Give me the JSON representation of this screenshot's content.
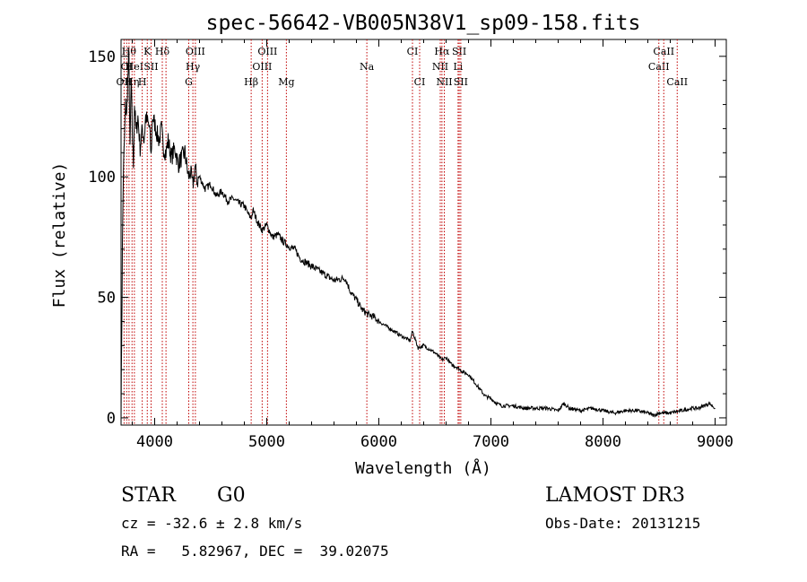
{
  "chart_data": {
    "type": "line",
    "title": "spec-56642-VB005N38V1_sp09-158.fits",
    "xlabel": "Wavelength (Å)",
    "ylabel": "Flux (relative)",
    "xlim": [
      3700,
      9100
    ],
    "ylim": [
      -3,
      157
    ],
    "x_ticks": [
      4000,
      5000,
      6000,
      7000,
      8000,
      9000
    ],
    "y_ticks": [
      0,
      50,
      100,
      150
    ],
    "grid": false,
    "line_color": "#000000",
    "marker_color": "#c00000",
    "series": [
      {
        "name": "flux",
        "x": [
          3700,
          3705,
          3712,
          3720,
          3730,
          3740,
          3750,
          3760,
          3770,
          3780,
          3790,
          3800,
          3810,
          3820,
          3835,
          3850,
          3870,
          3890,
          3905,
          3920,
          3940,
          3955,
          3968,
          3980,
          4000,
          4020,
          4040,
          4060,
          4080,
          4101,
          4120,
          4150,
          4180,
          4210,
          4240,
          4270,
          4300,
          4320,
          4340,
          4360,
          4380,
          4400,
          4450,
          4500,
          4550,
          4600,
          4650,
          4700,
          4750,
          4800,
          4840,
          4861,
          4880,
          4920,
          4960,
          5000,
          5050,
          5100,
          5150,
          5200,
          5250,
          5300,
          5400,
          5500,
          5600,
          5700,
          5750,
          5800,
          5850,
          5900,
          5950,
          6000,
          6100,
          6200,
          6280,
          6300,
          6350,
          6400,
          6500,
          6563,
          6600,
          6650,
          6700,
          6750,
          6800,
          6850,
          6900,
          6950,
          7000,
          7050,
          7100,
          7200,
          7300,
          7400,
          7500,
          7600,
          7650,
          7700,
          7800,
          7900,
          8000,
          8100,
          8200,
          8300,
          8400,
          8450,
          8500,
          8600,
          8700,
          8800,
          8850,
          8900,
          8950,
          9000
        ],
        "values": [
          0,
          30,
          70,
          100,
          115,
          130,
          125,
          140,
          150,
          110,
          140,
          120,
          105,
          130,
          118,
          125,
          112,
          120,
          115,
          125,
          122,
          120,
          108,
          125,
          122,
          118,
          115,
          120,
          112,
          110,
          115,
          108,
          112,
          105,
          108,
          110,
          100,
          102,
          96,
          104,
          98,
          100,
          95,
          97,
          92,
          94,
          90,
          91,
          89,
          88,
          84,
          83,
          86,
          81,
          78,
          80,
          75,
          76,
          73,
          71,
          70,
          66,
          63,
          60,
          57,
          58,
          52,
          49,
          45,
          43,
          42,
          40,
          37,
          34,
          32,
          36,
          29,
          30,
          27,
          24,
          25,
          22,
          21,
          19,
          18,
          15,
          12,
          9,
          8,
          6,
          5,
          5,
          4,
          4,
          4,
          3,
          6,
          4,
          3,
          4,
          3,
          2,
          3,
          3,
          2,
          1,
          2,
          2,
          3,
          4,
          4,
          5,
          6,
          4
        ]
      }
    ],
    "line_markers": [
      {
        "wavelength": 3727,
        "label": "OII",
        "row": 3
      },
      {
        "wavelength": 3750,
        "label": "OI",
        "row": 2
      },
      {
        "wavelength": 3771,
        "label": "Hθ",
        "row": 1
      },
      {
        "wavelength": 3798,
        "label": "Hη",
        "row": 3
      },
      {
        "wavelength": 3819,
        "label": "HeI",
        "row": 2
      },
      {
        "wavelength": 3889,
        "label": "H",
        "row": 3
      },
      {
        "wavelength": 3934,
        "label": "K",
        "row": 1
      },
      {
        "wavelength": 3968,
        "label": "SII",
        "row": 2
      },
      {
        "wavelength": 4068,
        "label": "Hδ",
        "row": 1
      },
      {
        "wavelength": 4101,
        "label": "",
        "row": 0
      },
      {
        "wavelength": 4304,
        "label": "G",
        "row": 3
      },
      {
        "wavelength": 4341,
        "label": "Hγ",
        "row": 2
      },
      {
        "wavelength": 4363,
        "label": "OIII",
        "row": 1
      },
      {
        "wavelength": 4861,
        "label": "Hβ",
        "row": 3
      },
      {
        "wavelength": 4959,
        "label": "OIII",
        "row": 2
      },
      {
        "wavelength": 5007,
        "label": "OIII",
        "row": 1
      },
      {
        "wavelength": 5175,
        "label": "Mg",
        "row": 3
      },
      {
        "wavelength": 5893,
        "label": "Na",
        "row": 2
      },
      {
        "wavelength": 6300,
        "label": "CI",
        "row": 1
      },
      {
        "wavelength": 6364,
        "label": "CI",
        "row": 3
      },
      {
        "wavelength": 6548,
        "label": "NII",
        "row": 2
      },
      {
        "wavelength": 6563,
        "label": "Hα",
        "row": 1
      },
      {
        "wavelength": 6584,
        "label": "NII",
        "row": 3
      },
      {
        "wavelength": 6707,
        "label": "Li",
        "row": 2
      },
      {
        "wavelength": 6717,
        "label": "SII",
        "row": 1
      },
      {
        "wavelength": 6731,
        "label": "SII",
        "row": 3
      },
      {
        "wavelength": 8498,
        "label": "CaII",
        "row": 2
      },
      {
        "wavelength": 8542,
        "label": "CaII",
        "row": 1
      },
      {
        "wavelength": 8662,
        "label": "CaII",
        "row": 3
      }
    ]
  },
  "info": {
    "object_class": "STAR",
    "subclass": "G0",
    "redshift_text": "cz = -32.6 ± 2.8 km/s",
    "coords_text": "RA =   5.82967, DEC =  39.02075",
    "survey": "LAMOST DR3",
    "obs_date_text": "Obs-Date: 20131215"
  }
}
